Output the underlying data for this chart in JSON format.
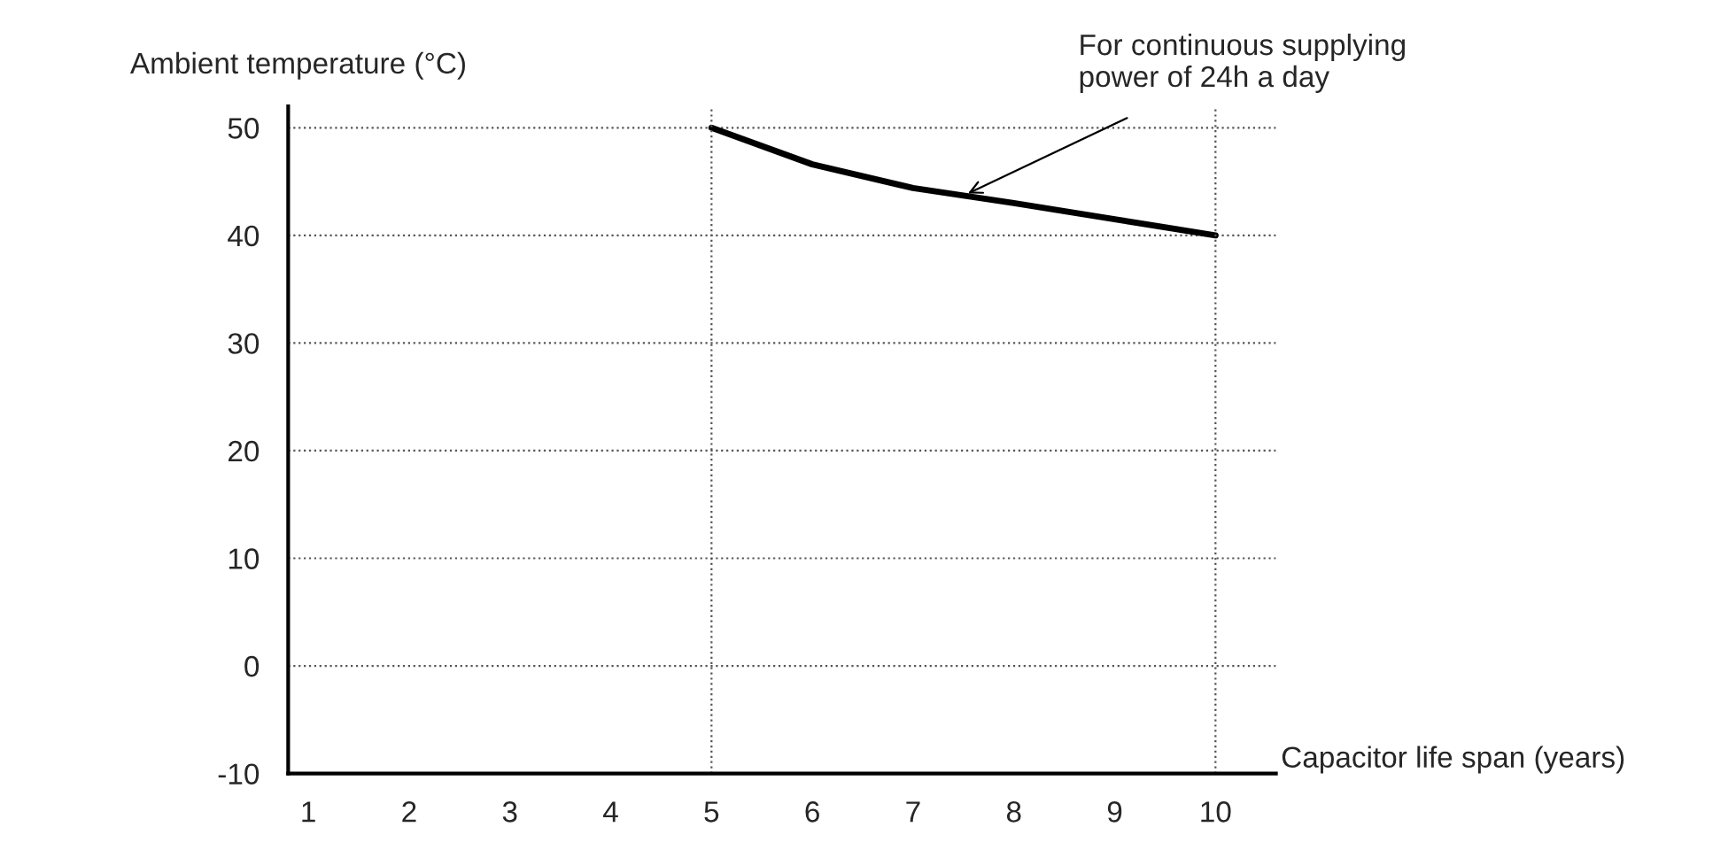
{
  "chart_data": {
    "type": "line",
    "xlabel": "Capacitor life span (years)",
    "ylabel": "Ambient temperature (°C)",
    "x": [
      5,
      6,
      7,
      8,
      9,
      10
    ],
    "series": [
      {
        "color": "#000000",
        "values": [
          50,
          46.6,
          44.4,
          43,
          41.5,
          40
        ]
      }
    ],
    "xlim": [
      0.8,
      10.6
    ],
    "xticks": [
      1,
      2,
      3,
      4,
      5,
      6,
      7,
      8,
      9,
      10
    ],
    "ylim": [
      -10,
      52
    ],
    "yticks": [
      -10,
      0,
      10,
      20,
      30,
      40,
      50
    ],
    "grid": "y",
    "marker": "none",
    "line_style": "solid",
    "legend": false,
    "ref_lines": [
      {
        "axis": "x",
        "value": 5
      },
      {
        "axis": "x",
        "value": 10
      }
    ],
    "annotations": [
      {
        "text": "For continuous supplying\npower of 24h a day",
        "x": 7.5,
        "y": 43.7
      }
    ]
  }
}
